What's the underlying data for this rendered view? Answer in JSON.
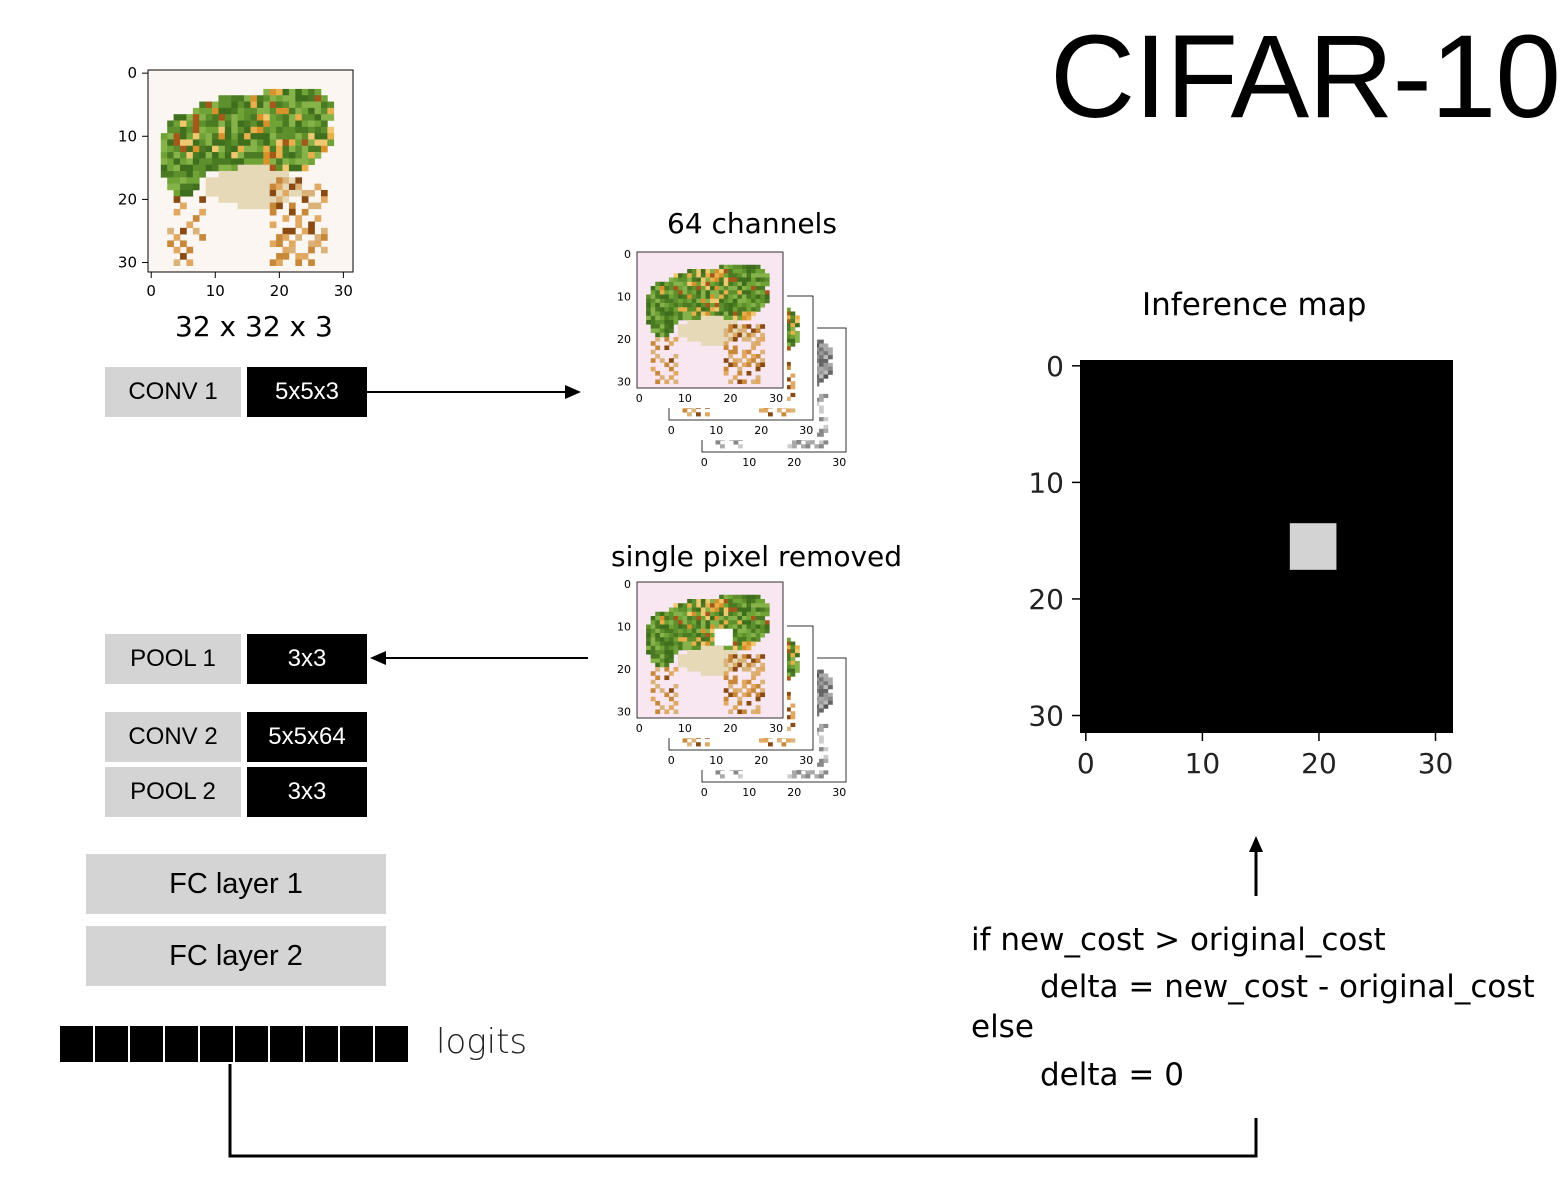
{
  "title": "CIFAR-10",
  "input": {
    "caption": "32 x 32 x 3",
    "ticks": [
      "0",
      "10",
      "20",
      "30"
    ]
  },
  "layers": {
    "conv1": {
      "label": "CONV 1",
      "param": "5x5x3"
    },
    "pool1": {
      "label": "POOL 1",
      "param": "3x3"
    },
    "conv2": {
      "label": "CONV 2",
      "param": "5x5x64"
    },
    "pool2": {
      "label": "POOL 2",
      "param": "3x3"
    },
    "fc1": {
      "label": "FC layer 1"
    },
    "fc2": {
      "label": "FC layer 2"
    }
  },
  "logits": {
    "label": "logits",
    "count": 10
  },
  "channels_caption": "64 channels",
  "removed_caption": "single pixel removed",
  "inference_map": {
    "title": "Inference map",
    "ticks": [
      "0",
      "10",
      "20",
      "30"
    ],
    "highlight_pixel": {
      "row": 14,
      "col": 18,
      "size": 4
    }
  },
  "code": {
    "line1": "if new_cost > original_cost",
    "line2": "delta = new_cost - original_cost",
    "line3": "else",
    "line4": "delta = 0"
  },
  "colors": {
    "layer_label_bg": "#d4d4d4",
    "layer_param_bg": "#000000",
    "map_bg": "#000000",
    "map_highlight": "#d3d3d3"
  }
}
